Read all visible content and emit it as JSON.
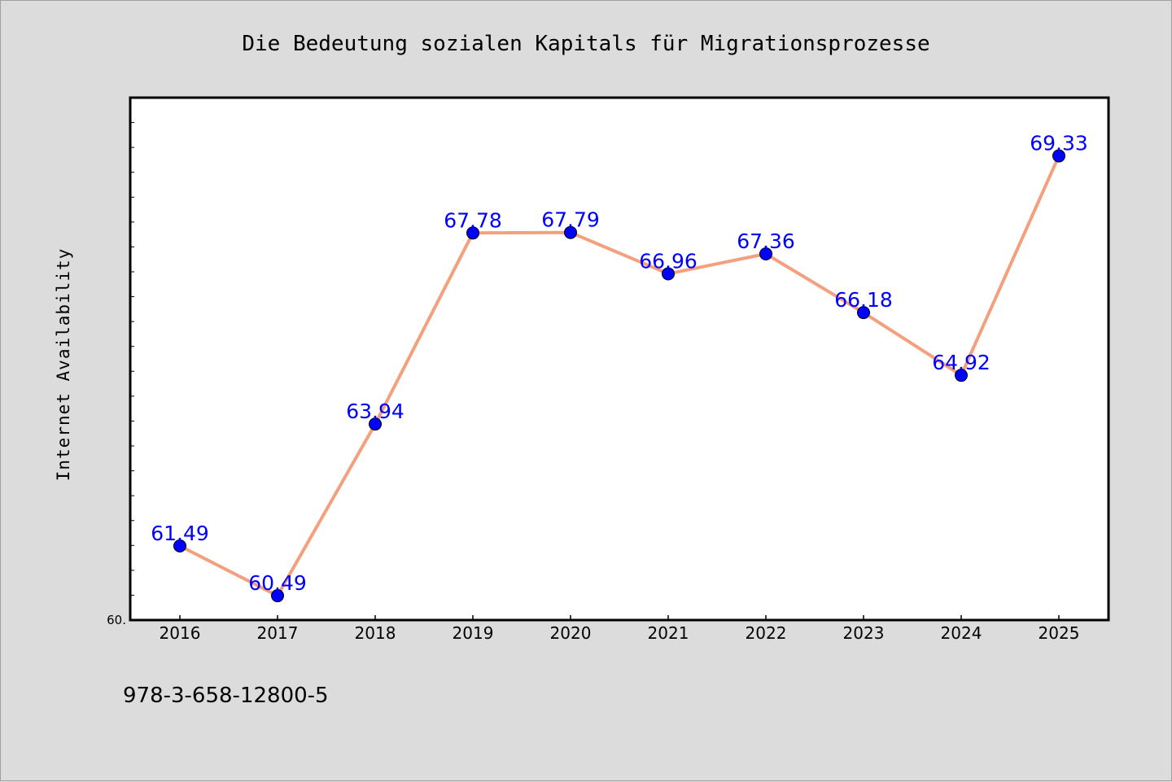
{
  "footer": {
    "isbn": "978-3-658-12800-5"
  },
  "chart_data": {
    "type": "line",
    "title": "Die Bedeutung sozialen Kapitals für Migrationsprozesse",
    "xlabel": "",
    "ylabel": "Internet Availability",
    "categories": [
      "2016",
      "2017",
      "2018",
      "2019",
      "2020",
      "2021",
      "2022",
      "2023",
      "2024",
      "2025"
    ],
    "series": [
      {
        "values": [
          61.49,
          60.49,
          63.94,
          67.78,
          67.79,
          66.96,
          67.36,
          66.18,
          64.92,
          69.33
        ]
      }
    ],
    "data_labels": [
      "61.49",
      "60.49",
      "63.94",
      "67.78",
      "67.79",
      "66.96",
      "67.36",
      "66.18",
      "64.92",
      "69.33"
    ],
    "ytick_label": "60.",
    "ylim": [
      60,
      70.5
    ],
    "grid": false,
    "colors": {
      "line": "#f4a07e",
      "marker": "#0000ff",
      "label": "#0000ff",
      "background": "#dcdcdc",
      "plot_bg": "#ffffff"
    }
  }
}
